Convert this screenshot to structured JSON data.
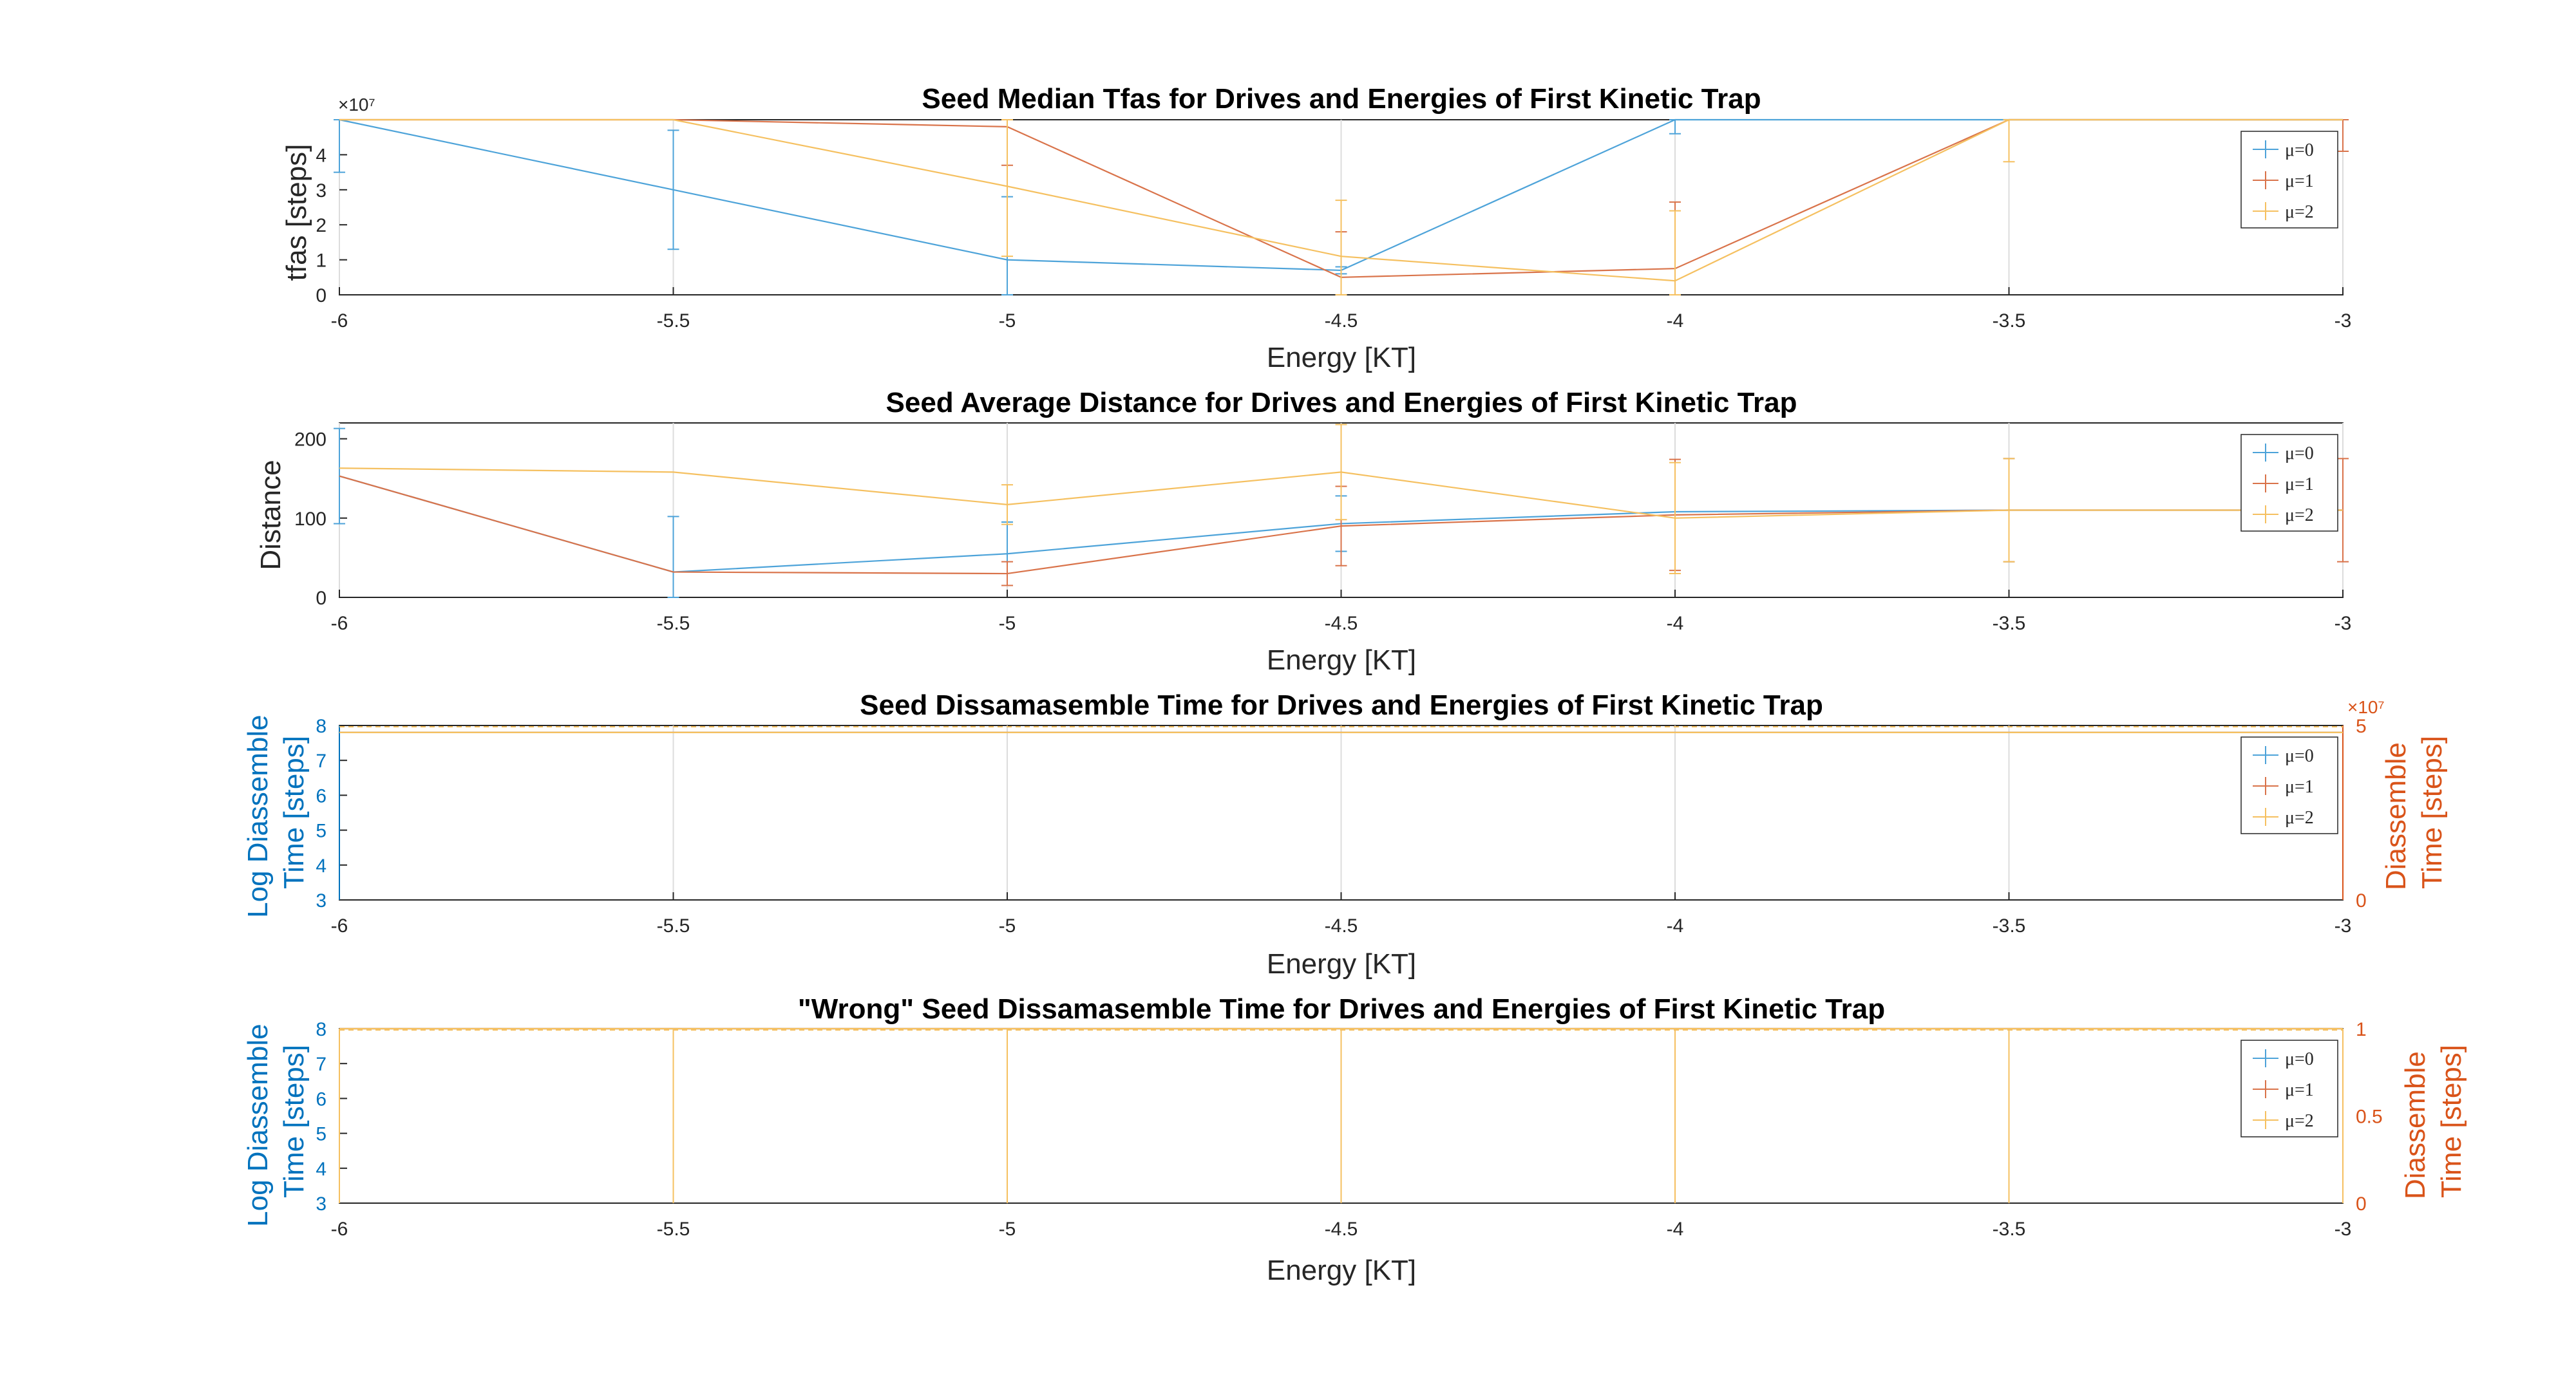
{
  "colors": {
    "mu0": "#4DA3D9",
    "mu1": "#D9734A",
    "mu2": "#F5C060",
    "left_axis": "#0072BD",
    "right_axis": "#D95319"
  },
  "chart_data": [
    {
      "type": "line",
      "title": "Seed Median Tfas for Drives and Energies of  First Kinetic Trap",
      "xlabel": "Energy [KT]",
      "ylabel": "tfas [steps]",
      "y_exponent": "×10⁷",
      "xlim": [
        -6,
        -3
      ],
      "ylim": [
        0,
        50000000
      ],
      "x_ticks": [
        "-6",
        "-5.5",
        "-5",
        "-4.5",
        "-4",
        "-3.5",
        "-3"
      ],
      "y_ticks": [
        "0",
        "1",
        "2",
        "3",
        "4"
      ],
      "x": [
        -6,
        -5.5,
        -5,
        -4.5,
        -4,
        -3.5,
        -3
      ],
      "series": [
        {
          "name": "μ=0",
          "values": [
            50000000,
            30000000,
            10000000,
            7000000,
            50000000,
            50000000,
            50000000
          ],
          "err": [
            15000000,
            17000000,
            18000000,
            1000000,
            4000000,
            0,
            0
          ]
        },
        {
          "name": "μ=1",
          "values": [
            50000000,
            50000000,
            48000000,
            5000000,
            7500000,
            50000000,
            50000000
          ],
          "err": [
            0,
            0,
            11000000,
            13000000,
            19000000,
            0,
            9000000
          ]
        },
        {
          "name": "μ=2",
          "values": [
            50000000,
            50000000,
            31000000,
            11000000,
            4000000,
            50000000,
            50000000
          ],
          "err": [
            0,
            0,
            20000000,
            16000000,
            20000000,
            12000000,
            0
          ]
        }
      ],
      "legend": [
        "μ=0",
        "μ=1",
        "μ=2"
      ],
      "legend_position": "top-right",
      "grid": "x"
    },
    {
      "type": "line",
      "title": "Seed Average Distance  for Drives and Energies of  First Kinetic Trap",
      "xlabel": "Energy [KT]",
      "ylabel": "Distance",
      "xlim": [
        -6,
        -3
      ],
      "ylim": [
        0,
        220
      ],
      "x_ticks": [
        "-6",
        "-5.5",
        "-5",
        "-4.5",
        "-4",
        "-3.5",
        "-3"
      ],
      "y_ticks": [
        "0",
        "100",
        "200"
      ],
      "x": [
        -6,
        -5.5,
        -5,
        -4.5,
        -4,
        -3.5,
        -3
      ],
      "series": [
        {
          "name": "μ=0",
          "values": [
            153,
            32,
            55,
            93,
            108,
            110,
            110
          ],
          "err": [
            60,
            70,
            40,
            35,
            0,
            65,
            0
          ]
        },
        {
          "name": "μ=1",
          "values": [
            153,
            32,
            30,
            90,
            104,
            110,
            110
          ],
          "err": [
            0,
            0,
            15,
            50,
            70,
            65,
            65
          ]
        },
        {
          "name": "μ=2",
          "values": [
            163,
            158,
            117,
            158,
            100,
            110,
            110
          ],
          "err": [
            0,
            0,
            25,
            60,
            70,
            65,
            0
          ]
        }
      ],
      "legend": [
        "μ=0",
        "μ=1",
        "μ=2"
      ],
      "legend_position": "top-right",
      "grid": "x"
    },
    {
      "type": "line",
      "title": "Seed Dissamasemble Time for Drives and Energies of  First Kinetic Trap",
      "xlabel": "Energy [KT]",
      "ylabel_left": "Log Diassemble Time [steps]",
      "ylabel_right": "Diassemble Time [steps]",
      "right_exponent": "×10⁷",
      "xlim": [
        -6,
        -3
      ],
      "ylim_left": [
        3,
        8
      ],
      "ylim_right": [
        0,
        50000000
      ],
      "x_ticks": [
        "-6",
        "-5.5",
        "-5",
        "-4.5",
        "-4",
        "-3.5",
        "-3"
      ],
      "y_ticks_left": [
        "3",
        "4",
        "5",
        "6",
        "7",
        "8"
      ],
      "y_ticks_right": [
        "0",
        "5"
      ],
      "x": [
        -6,
        -5.5,
        -5,
        -4.5,
        -4,
        -3.5,
        -3
      ],
      "series": [
        {
          "name": "μ=0",
          "values": [
            7.8,
            7.8,
            7.8,
            7.8,
            7.8,
            7.8,
            7.8
          ]
        },
        {
          "name": "μ=1",
          "values": [
            7.8,
            7.8,
            7.8,
            7.8,
            7.8,
            7.8,
            7.8
          ]
        },
        {
          "name": "μ=2",
          "values": [
            7.8,
            7.8,
            7.8,
            7.8,
            7.8,
            7.8,
            7.8
          ]
        }
      ],
      "legend": [
        "μ=0",
        "μ=1",
        "μ=2"
      ],
      "legend_position": "top-right",
      "grid": "x"
    },
    {
      "type": "line",
      "title": "\"Wrong\" Seed Dissamasemble Time for Drives and Energies of  First Kinetic Trap",
      "xlabel": "Energy [KT]",
      "ylabel_left": "Log Diassemble Time [steps]",
      "ylabel_right": "Diassemble Time [steps]",
      "xlim": [
        -6,
        -3
      ],
      "ylim_left": [
        3,
        8
      ],
      "ylim_right": [
        0,
        1
      ],
      "x_ticks": [
        "-6",
        "-5.5",
        "-5",
        "-4.5",
        "-4",
        "-3.5",
        "-3"
      ],
      "y_ticks_left": [
        "3",
        "4",
        "5",
        "6",
        "7",
        "8"
      ],
      "y_ticks_right": [
        "0",
        "0.5",
        "1"
      ],
      "x": [
        -6,
        -5.5,
        -5,
        -4.5,
        -4,
        -3.5,
        -3
      ],
      "series": [
        {
          "name": "μ=0",
          "values": [
            8,
            8,
            8,
            8,
            8,
            8,
            8
          ]
        },
        {
          "name": "μ=1",
          "values": [
            8,
            8,
            8,
            8,
            8,
            8,
            8
          ]
        },
        {
          "name": "μ=2",
          "values": [
            8,
            8,
            8,
            8,
            8,
            8,
            8
          ]
        }
      ],
      "legend": [
        "μ=0",
        "μ=1",
        "μ=2"
      ],
      "legend_position": "top-right",
      "grid": "x"
    }
  ]
}
